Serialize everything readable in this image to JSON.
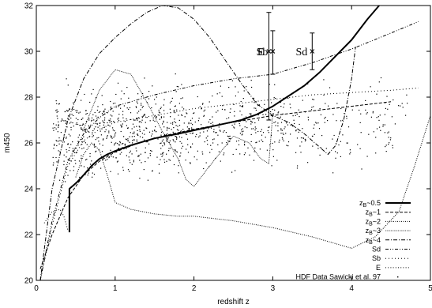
{
  "chart_data": {
    "type": "line",
    "title": "",
    "xlabel": "redshift z",
    "ylabel": "m450",
    "xlim": [
      0,
      5
    ],
    "ylim": [
      20,
      32
    ],
    "xticks": [
      "0",
      "1",
      "2",
      "3",
      "4",
      "5"
    ],
    "yticks": [
      "20",
      "22",
      "24",
      "26",
      "28",
      "30",
      "32"
    ],
    "grid": false,
    "legend_position": "bottom-right",
    "legend": [
      {
        "label": "z",
        "sub": "B",
        "suffix": "~0.5",
        "style": "thick-solid"
      },
      {
        "label": "z",
        "sub": "B",
        "suffix": "~1",
        "style": "dashed"
      },
      {
        "label": "z",
        "sub": "B",
        "suffix": "~2",
        "style": "dotted"
      },
      {
        "label": "z",
        "sub": "B",
        "suffix": "~3",
        "style": "fine-dotted"
      },
      {
        "label": "z",
        "sub": "B",
        "suffix": "~4",
        "style": "dash-dot"
      },
      {
        "label": "Sd",
        "sub": "",
        "suffix": "",
        "style": "dash-dot-dot"
      },
      {
        "label": "Sb",
        "sub": "",
        "suffix": "",
        "style": "sparse-dot"
      },
      {
        "label": "E",
        "sub": "",
        "suffix": "",
        "style": "loose-dot"
      },
      {
        "label": "HDF Data Sawicki et al. 97",
        "sub": "",
        "suffix": "",
        "style": "point"
      }
    ],
    "series": [
      {
        "name": "zB~0.5",
        "style": "thick-solid",
        "x": [
          0.42,
          0.42,
          0.47,
          0.52,
          0.6,
          0.7,
          0.8,
          0.9,
          1.0,
          1.2,
          1.5,
          1.8,
          2.0,
          2.2,
          2.4,
          2.6,
          2.8,
          3.0,
          3.2,
          3.4,
          3.6,
          3.8,
          4.0,
          4.2,
          4.35
        ],
        "y": [
          22.1,
          24.0,
          24.15,
          24.3,
          24.6,
          25.0,
          25.3,
          25.5,
          25.65,
          25.9,
          26.2,
          26.4,
          26.55,
          26.7,
          26.85,
          27.0,
          27.25,
          27.6,
          28.05,
          28.5,
          29.1,
          29.8,
          30.5,
          31.4,
          32.0
        ]
      },
      {
        "name": "zB~1",
        "style": "dashed",
        "x": [
          0.05,
          0.2,
          0.4,
          0.6,
          0.8,
          1.0,
          1.3,
          1.6,
          2.0,
          2.5,
          3.0,
          3.5,
          4.0,
          4.5
        ],
        "y": [
          20.5,
          22.0,
          23.6,
          24.6,
          25.2,
          25.6,
          26.0,
          26.3,
          26.6,
          26.9,
          27.2,
          27.4,
          27.6,
          27.8
        ]
      },
      {
        "name": "zB~2",
        "style": "dotted",
        "x": [
          0.5,
          0.6,
          0.7,
          0.8,
          0.9,
          1.0,
          1.2,
          1.5,
          1.8,
          2.0,
          2.5,
          3.0,
          3.5,
          4.0,
          4.3,
          4.6,
          4.8,
          5.0
        ],
        "y": [
          24.5,
          25.5,
          26.0,
          25.7,
          24.6,
          23.4,
          23.1,
          22.9,
          22.8,
          22.8,
          22.6,
          22.3,
          21.9,
          21.4,
          21.9,
          23.0,
          25.0,
          27.2
        ]
      },
      {
        "name": "zB~3",
        "style": "fine-dotted",
        "x": [
          0.6,
          0.8,
          1.0,
          1.2,
          1.4,
          1.6,
          1.8,
          1.9,
          2.0,
          2.2,
          2.5,
          2.7,
          2.85,
          2.95,
          3.0
        ],
        "y": [
          26.6,
          28.3,
          29.2,
          29.0,
          27.8,
          26.5,
          25.3,
          24.4,
          24.1,
          25.0,
          26.3,
          26.0,
          25.3,
          25.1,
          27.3
        ]
      },
      {
        "name": "zB~4",
        "style": "dash-dot",
        "x": [
          0.05,
          0.2,
          0.4,
          0.6,
          0.8,
          1.0,
          1.2,
          1.4,
          1.6,
          1.8,
          2.0,
          2.2,
          2.4,
          2.6,
          2.8,
          3.0,
          3.2,
          3.4,
          3.6,
          3.7,
          3.8,
          3.9,
          4.0,
          4.05
        ],
        "y": [
          20.0,
          24.0,
          27.0,
          28.8,
          29.9,
          30.6,
          31.2,
          31.7,
          32.0,
          31.9,
          31.4,
          30.6,
          29.6,
          28.6,
          27.7,
          27.2,
          26.9,
          26.4,
          25.8,
          25.5,
          25.9,
          27.0,
          28.8,
          30.2
        ]
      },
      {
        "name": "Sd",
        "style": "dash-dot-dot",
        "x": [
          0.05,
          0.2,
          0.4,
          0.6,
          0.8,
          1.0,
          1.5,
          2.0,
          2.5,
          3.0,
          3.5,
          4.0,
          4.5,
          4.85
        ],
        "y": [
          20.0,
          22.6,
          25.2,
          26.4,
          27.1,
          27.6,
          28.1,
          28.5,
          28.8,
          29.0,
          29.5,
          30.1,
          30.8,
          31.3
        ]
      },
      {
        "name": "Sb",
        "style": "sparse-dot",
        "x": [
          0.05,
          0.2,
          0.4,
          0.6,
          0.8,
          1.0,
          1.5,
          2.0,
          2.5,
          3.0,
          3.5,
          4.0,
          4.5,
          4.85
        ],
        "y": [
          20.0,
          22.4,
          25.0,
          26.1,
          26.6,
          26.9,
          27.2,
          27.5,
          27.7,
          27.9,
          28.1,
          28.2,
          28.3,
          28.4
        ]
      },
      {
        "name": "E",
        "style": "loose-dot",
        "x": [
          0.1,
          0.2,
          0.3,
          0.35,
          0.4
        ],
        "y": [
          22.5,
          23.0,
          23.1,
          22.8,
          22.2
        ]
      }
    ],
    "annotations": [
      {
        "label": "E",
        "x": 2.95,
        "y": 30.0,
        "yerr_low": 27.0,
        "yerr_high": 31.7,
        "marker_x": 2.95
      },
      {
        "label": "Sb",
        "x": 3.0,
        "y": 30.0,
        "yerr_low": 29.0,
        "yerr_high": 30.9,
        "marker_x": 3.0
      },
      {
        "label": "Sd",
        "x": 3.5,
        "y": 30.0,
        "yerr_low": 29.2,
        "yerr_high": 30.8,
        "marker_x": 3.5
      }
    ],
    "scatter_points": {
      "name": "HDF Data Sawicki et al. 97",
      "x_range": [
        0.0,
        4.7
      ],
      "y_range": [
        23.0,
        29.8
      ],
      "approx_count": 1100
    }
  }
}
